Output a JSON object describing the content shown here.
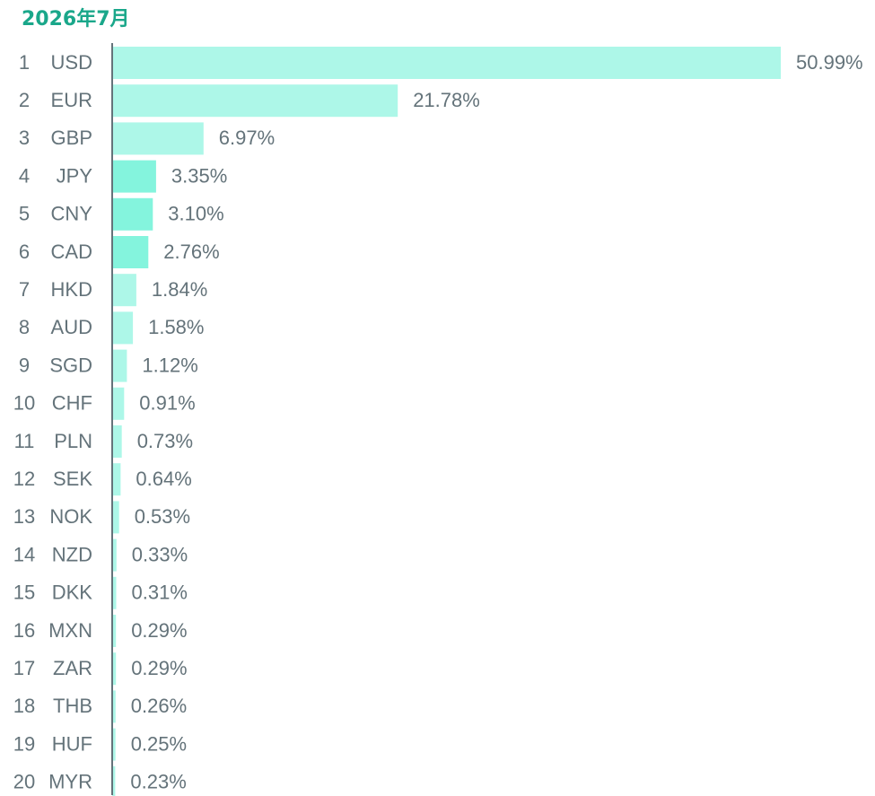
{
  "chart_data": {
    "type": "bar",
    "orientation": "horizontal",
    "title": "2026年7月",
    "xlabel": "",
    "ylabel": "",
    "grid": false,
    "xlim": [
      0,
      51
    ],
    "ranks": [
      "1",
      "2",
      "3",
      "4",
      "5",
      "6",
      "7",
      "8",
      "9",
      "10",
      "11",
      "12",
      "13",
      "14",
      "15",
      "16",
      "17",
      "18",
      "19",
      "20"
    ],
    "categories": [
      "USD",
      "EUR",
      "GBP",
      "JPY",
      "CNY",
      "CAD",
      "HKD",
      "AUD",
      "SGD",
      "CHF",
      "PLN",
      "SEK",
      "NOK",
      "NZD",
      "DKK",
      "MXN",
      "ZAR",
      "THB",
      "HUF",
      "MYR"
    ],
    "values": [
      50.99,
      21.78,
      6.97,
      3.35,
      3.1,
      2.76,
      1.84,
      1.58,
      1.12,
      0.91,
      0.73,
      0.64,
      0.53,
      0.33,
      0.31,
      0.29,
      0.29,
      0.26,
      0.25,
      0.23
    ],
    "value_labels": [
      "50.99%",
      "21.78%",
      "6.97%",
      "3.35%",
      "3.10%",
      "2.76%",
      "1.84%",
      "1.58%",
      "1.12%",
      "0.91%",
      "0.73%",
      "0.64%",
      "0.53%",
      "0.33%",
      "0.31%",
      "0.29%",
      "0.29%",
      "0.26%",
      "0.25%",
      "0.23%"
    ],
    "highlighted_categories": [
      "JPY",
      "CNY",
      "CAD"
    ]
  },
  "colors": {
    "title": "#1aa78a",
    "bar": "#adf7e8",
    "bar_highlight": "#84f4dd",
    "axis": "#64737a",
    "text": "#64737a"
  }
}
